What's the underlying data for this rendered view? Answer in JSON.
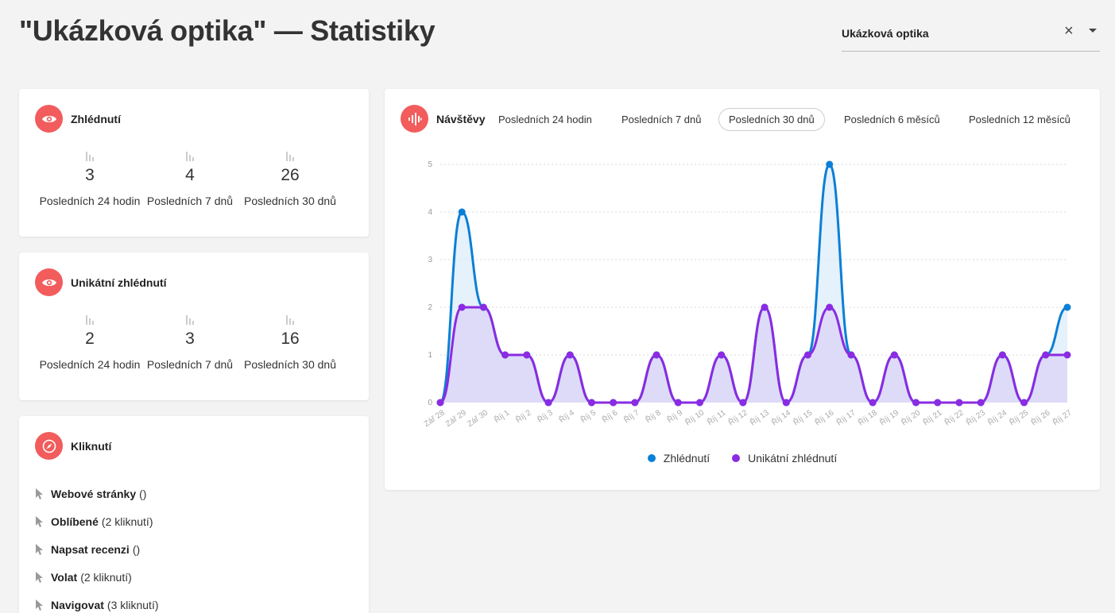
{
  "page": {
    "title": "\"Ukázková optika\" — Statistiky"
  },
  "venue_select": {
    "value": "Ukázková optika",
    "clear_icon": "×"
  },
  "views": {
    "title": "Zhlédnutí",
    "icon": "eye-icon",
    "stats": [
      {
        "value": "3",
        "label": "Posledních 24 hodin"
      },
      {
        "value": "4",
        "label": "Posledních 7 dnů"
      },
      {
        "value": "26",
        "label": "Posledních 30 dnů"
      }
    ]
  },
  "unique_views": {
    "title": "Unikátní zhlédnutí",
    "icon": "eye-icon",
    "stats": [
      {
        "value": "2",
        "label": "Posledních 24 hodin"
      },
      {
        "value": "3",
        "label": "Posledních 7 dnů"
      },
      {
        "value": "16",
        "label": "Posledních 30 dnů"
      }
    ]
  },
  "clicks": {
    "title": "Kliknutí",
    "icon": "compass-icon",
    "items": [
      {
        "name": "Webové stránky",
        "count": "()"
      },
      {
        "name": "Oblíbené",
        "count": "(2 kliknutí)"
      },
      {
        "name": "Napsat recenzi",
        "count": "()"
      },
      {
        "name": "Volat",
        "count": "(2 kliknutí)"
      },
      {
        "name": "Navigovat",
        "count": "(3 kliknutí)"
      }
    ]
  },
  "visits": {
    "title": "Návštěvy",
    "icon": "sound-wave-icon",
    "tabs": [
      "Posledních 24 hodin",
      "Posledních 7 dnů",
      "Posledních 30 dnů",
      "Posledních 6 měsíců",
      "Posledních 12 měsíců"
    ],
    "active_tab": 2
  },
  "chart_data": {
    "type": "area",
    "x": [
      "Zář 28",
      "Zář 29",
      "Zář 30",
      "Říj 1",
      "Říj 2",
      "Říj 3",
      "Říj 4",
      "Říj 5",
      "Říj 6",
      "Říj 7",
      "Říj 8",
      "Říj 9",
      "Říj 10",
      "Říj 11",
      "Říj 12",
      "Říj 13",
      "Říj 14",
      "Říj 15",
      "Říj 16",
      "Říj 17",
      "Říj 18",
      "Říj 19",
      "Říj 20",
      "Říj 21",
      "Říj 22",
      "Říj 23",
      "Říj 24",
      "Říj 25",
      "Říj 26",
      "Říj 27"
    ],
    "y_ticks": [
      "0",
      "1",
      "2",
      "3",
      "4",
      "5"
    ],
    "ylim": [
      0,
      5
    ],
    "grid": true,
    "legend": "bottom",
    "series": [
      {
        "name": "Zhlédnutí",
        "color": "#0b7fd6",
        "fill": "#dcecfa",
        "values": [
          0,
          4,
          2,
          1,
          1,
          0,
          1,
          0,
          0,
          0,
          1,
          0,
          0,
          1,
          0,
          2,
          0,
          1,
          5,
          1,
          0,
          1,
          0,
          0,
          0,
          0,
          1,
          0,
          1,
          2
        ]
      },
      {
        "name": "Unikátní zhlédnutí",
        "color": "#8b2be2",
        "fill": "#dcd6f7",
        "values": [
          0,
          2,
          2,
          1,
          1,
          0,
          1,
          0,
          0,
          0,
          1,
          0,
          0,
          1,
          0,
          2,
          0,
          1,
          2,
          1,
          0,
          1,
          0,
          0,
          0,
          0,
          1,
          0,
          1,
          1
        ]
      }
    ]
  }
}
